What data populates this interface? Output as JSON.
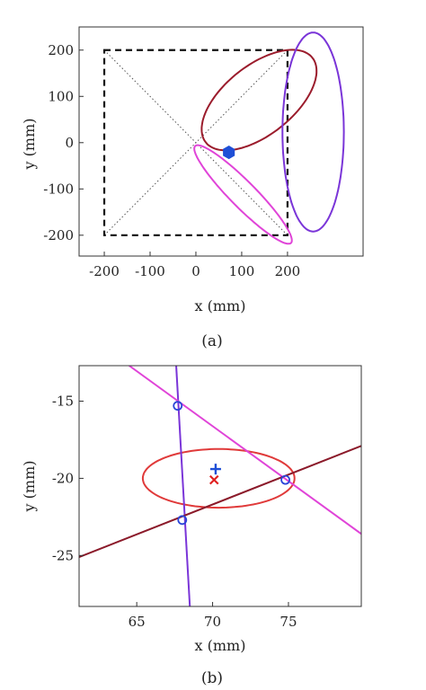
{
  "chart_data": [
    {
      "type": "line",
      "panel_label": "(a)",
      "xlabel": "x (mm)",
      "ylabel": "y (mm)",
      "xlim": [
        -255,
        365
      ],
      "ylim": [
        -245,
        250
      ],
      "xticks": [
        -200,
        -100,
        0,
        100,
        200
      ],
      "yticks": [
        200,
        100,
        0,
        -100,
        -200
      ],
      "xtick_labels": [
        "-200",
        "-100",
        "0",
        "100",
        "200"
      ],
      "ytick_labels": [
        "200",
        "100",
        "0",
        "-100",
        "-200"
      ],
      "square": {
        "xmin": -200,
        "xmax": 200,
        "ymin": -200,
        "ymax": 200,
        "style": "dashed",
        "color": "#111111"
      },
      "diagonals": [
        {
          "from": [
            -200,
            200
          ],
          "to": [
            200,
            -200
          ]
        },
        {
          "from": [
            -200,
            -200
          ],
          "to": [
            200,
            200
          ]
        }
      ],
      "ellipses": [
        {
          "name": "",
          "color": "#9b1c2c",
          "center": [
            138,
            92
          ],
          "semi_axes": [
            148,
            75
          ],
          "angle_deg": 38
        },
        {
          "name": "",
          "color": "#7a35d8",
          "center": [
            256,
            23
          ],
          "semi_axes": [
            67,
            215
          ],
          "angle_deg": 0
        },
        {
          "name": "",
          "color": "#e044d8",
          "center": [
            103,
            -112
          ],
          "semi_axes": [
            148,
            28
          ],
          "angle_deg": -45
        }
      ],
      "marker": {
        "x": 72,
        "y": -21,
        "color": "#1f4fd6",
        "shape": "filled-hexagon"
      }
    },
    {
      "type": "line",
      "panel_label": "(b)",
      "xlabel": "x (mm)",
      "ylabel": "y (mm)",
      "xlim": [
        61.2,
        79.8
      ],
      "ylim": [
        -28.3,
        -12.7
      ],
      "xticks": [
        65,
        70,
        75
      ],
      "yticks": [
        -15,
        -20,
        -25
      ],
      "xtick_labels": [
        "65",
        "70",
        "75"
      ],
      "ytick_labels": [
        "-15",
        "-20",
        "-25"
      ],
      "lines": [
        {
          "name": "",
          "color": "#7a35d8",
          "points": [
            [
              67.6,
              -12.7
            ],
            [
              68.5,
              -28.3
            ]
          ]
        },
        {
          "name": "",
          "color": "#e044d8",
          "points": [
            [
              64.5,
              -12.7
            ],
            [
              79.8,
              -23.6
            ]
          ]
        },
        {
          "name": "",
          "color": "#8b1a2a",
          "points": [
            [
              61.2,
              -25.1
            ],
            [
              79.8,
              -17.9
            ]
          ]
        }
      ],
      "ellipse": {
        "color": "#e03a3a",
        "center": [
          70.4,
          -20.0
        ],
        "semi_axes": [
          5.0,
          1.9
        ],
        "angle_deg": 0
      },
      "circle_markers": {
        "color": "#2a45d8",
        "points": [
          [
            67.7,
            -15.3
          ],
          [
            68.0,
            -22.7
          ],
          [
            74.8,
            -20.1
          ]
        ]
      },
      "plus_marker": {
        "x": 70.2,
        "y": -19.4,
        "color": "#1f4fd6"
      },
      "x_marker": {
        "x": 70.1,
        "y": -20.1,
        "color": "#e02020"
      }
    }
  ]
}
